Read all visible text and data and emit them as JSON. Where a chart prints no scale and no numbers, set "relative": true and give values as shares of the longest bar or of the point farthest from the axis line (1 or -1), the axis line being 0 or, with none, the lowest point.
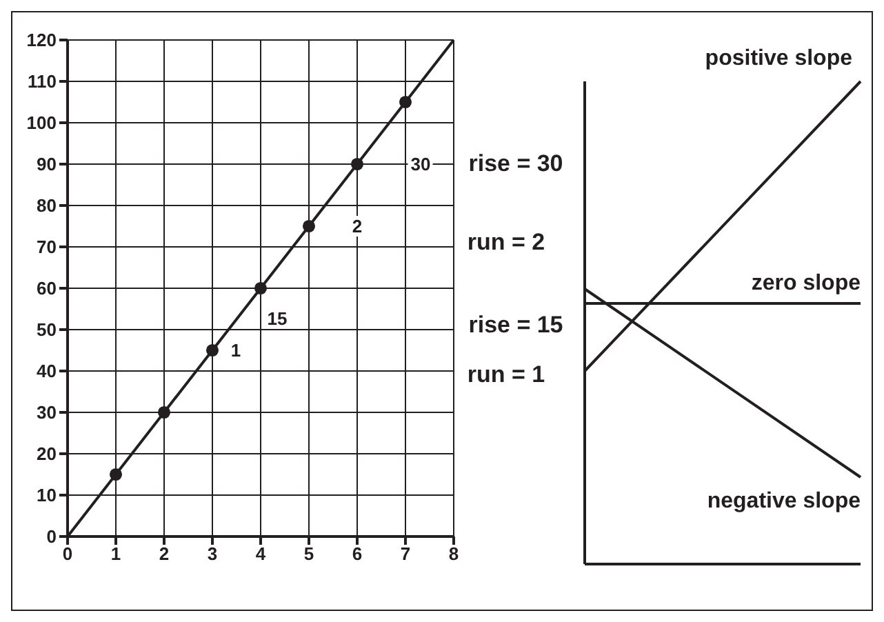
{
  "chart_data": [
    {
      "type": "line",
      "xlim": [
        0,
        8
      ],
      "xticks": [
        0,
        1,
        2,
        3,
        4,
        5,
        6,
        7,
        8
      ],
      "ylim": [
        0,
        120
      ],
      "yticks": [
        0,
        10,
        20,
        30,
        40,
        50,
        60,
        70,
        80,
        90,
        100,
        110,
        120
      ],
      "grid": true,
      "series": [
        {
          "color": "#231f20",
          "x": [
            0,
            8
          ],
          "values": [
            0,
            120
          ],
          "marker": "none"
        },
        {
          "type": "scatter",
          "color": "#231f20",
          "x": [
            1,
            2,
            3,
            4,
            5,
            6,
            7
          ],
          "values": [
            15,
            30,
            45,
            60,
            75,
            90,
            105
          ],
          "marker": "circle"
        }
      ],
      "annotations": [
        "2",
        "30",
        "1",
        "15",
        "rise = 30",
        "run = 2",
        "rise = 15",
        "run = 1"
      ]
    },
    {
      "type": "line",
      "relative": true,
      "categories": [
        null,
        null
      ],
      "series": [
        {
          "name": "positive slope",
          "color": "#231f20",
          "values": [
            0.4,
            1
          ]
        },
        {
          "name": "zero slope",
          "color": "#231f20",
          "values": [
            0.54,
            0.54
          ]
        },
        {
          "name": "negative slope",
          "color": "#231f20",
          "values": [
            0.57,
            0.18
          ]
        }
      ]
    }
  ]
}
